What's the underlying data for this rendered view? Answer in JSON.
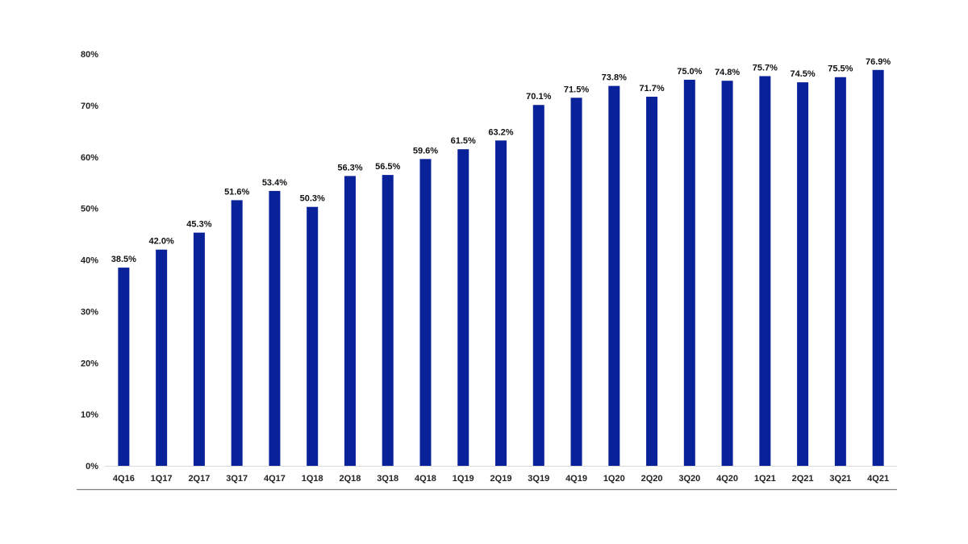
{
  "chart_data": {
    "type": "bar",
    "categories": [
      "4Q16",
      "1Q17",
      "2Q17",
      "3Q17",
      "4Q17",
      "1Q18",
      "2Q18",
      "3Q18",
      "4Q18",
      "1Q19",
      "2Q19",
      "3Q19",
      "4Q19",
      "1Q20",
      "2Q20",
      "3Q20",
      "4Q20",
      "1Q21",
      "2Q21",
      "3Q21",
      "4Q21"
    ],
    "values": [
      38.5,
      42.0,
      45.3,
      51.6,
      53.4,
      50.3,
      56.3,
      56.5,
      59.6,
      61.5,
      63.2,
      70.1,
      71.5,
      73.8,
      71.7,
      75.0,
      74.8,
      75.7,
      74.5,
      75.5,
      76.9
    ],
    "data_labels": [
      "38.5%",
      "42.0%",
      "45.3%",
      "51.6%",
      "53.4%",
      "50.3%",
      "56.3%",
      "56.5%",
      "59.6%",
      "61.5%",
      "63.2%",
      "70.1%",
      "71.5%",
      "73.8%",
      "71.7%",
      "75.0%",
      "74.8%",
      "75.7%",
      "74.5%",
      "75.5%",
      "76.9%"
    ],
    "y_ticks": [
      0,
      10,
      20,
      30,
      40,
      50,
      60,
      70,
      80
    ],
    "y_tick_labels": [
      "0%",
      "10%",
      "20%",
      "30%",
      "40%",
      "50%",
      "60%",
      "70%",
      "80%"
    ],
    "ylim": [
      0,
      80
    ],
    "title": "",
    "xlabel": "",
    "ylabel": "",
    "grid": false,
    "legend": "none",
    "bar_color": "#0A2299"
  }
}
